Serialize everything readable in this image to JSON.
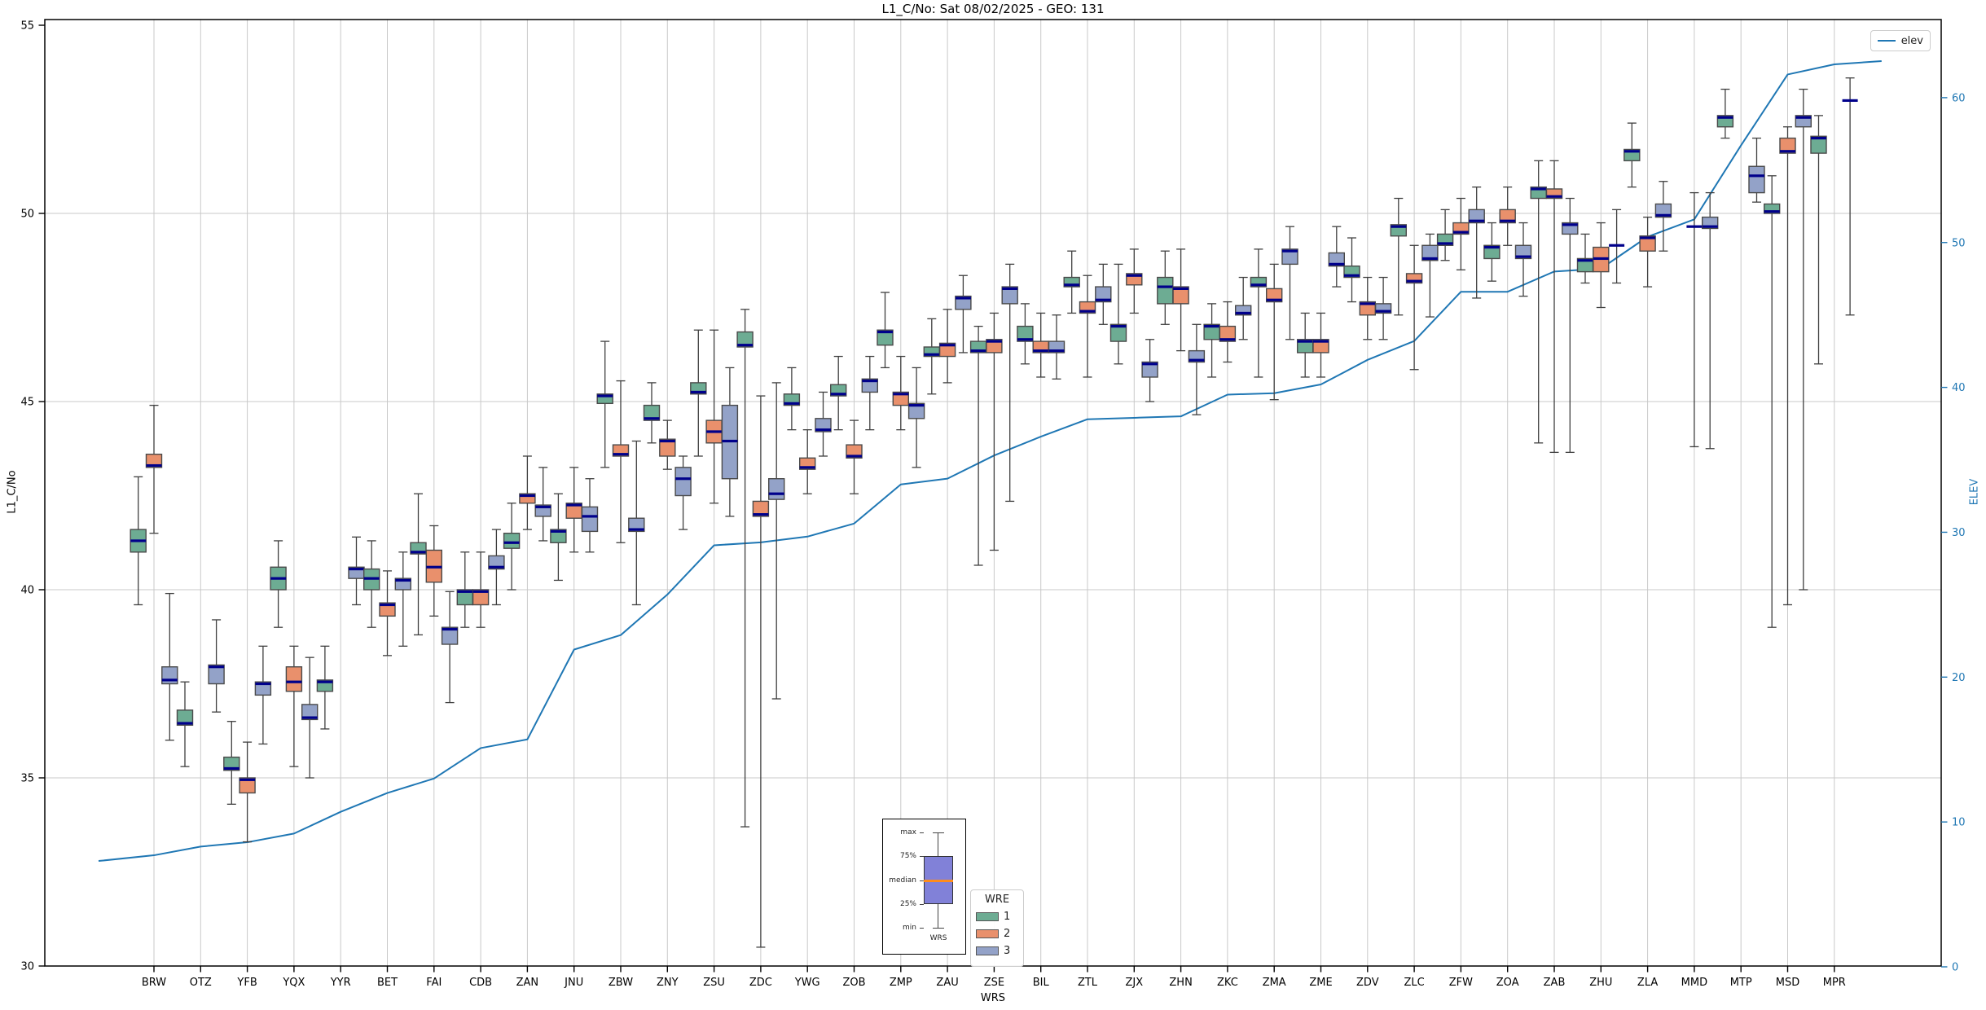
{
  "title": "L1_C/No: Sat 08/02/2025 - GEO: 131",
  "axes": {
    "left": {
      "label": "L1_C/No",
      "ticks": [
        30,
        35,
        40,
        45,
        50,
        55
      ],
      "gridlines": [
        35,
        40,
        45,
        50
      ],
      "range": [
        30,
        55
      ]
    },
    "right": {
      "label": "ELEV",
      "ticks": [
        0,
        10,
        20,
        30,
        40,
        50,
        60
      ],
      "range": [
        0,
        60
      ],
      "color": "#1f77b4"
    },
    "x": {
      "label": "WRS"
    }
  },
  "legend_elev": {
    "label": "elev"
  },
  "legend_wre": {
    "title": "WRE",
    "items": [
      {
        "label": "1",
        "color": "#6dac93"
      },
      {
        "label": "2",
        "color": "#e9906c"
      },
      {
        "label": "3",
        "color": "#93a2c8"
      }
    ]
  },
  "inset": {
    "labels": [
      "max",
      "75%",
      "median",
      "25%",
      "min"
    ],
    "xlabel": "WRS",
    "box_color": "#8181d8",
    "median_color": "#ff8c1a"
  },
  "colors": {
    "series": [
      "#6dac93",
      "#e9906c",
      "#93a2c8"
    ],
    "median": "#00008b",
    "box_stroke": "#4a4a4a",
    "whisker": "#3f3f3f",
    "elev": "#1f77b4",
    "grid": "#c9c9c9"
  },
  "chart_data": {
    "type": "boxplot+line",
    "title": "L1_C/No: Sat 08/02/2025 - GEO: 131",
    "xlabel": "WRS",
    "ylabel_left": "L1_C/No",
    "ylabel_right": "ELEV",
    "ylim_left": [
      30,
      55
    ],
    "ylim_right": [
      0,
      60
    ],
    "grid": true,
    "legend_position": "elev top-right, WRE bottom-center",
    "series_names": [
      "1",
      "2",
      "3"
    ],
    "categories": [
      "BRW",
      "OTZ",
      "YFB",
      "YQX",
      "YYR",
      "BET",
      "FAI",
      "CDB",
      "ZAN",
      "JNU",
      "ZBW",
      "ZNY",
      "ZSU",
      "ZDC",
      "YWG",
      "ZOB",
      "ZMP",
      "ZAU",
      "ZSE",
      "BIL",
      "ZTL",
      "ZJX",
      "ZHN",
      "ZKC",
      "ZMA",
      "ZME",
      "ZDV",
      "ZLC",
      "ZFW",
      "ZOA",
      "ZAB",
      "ZHU",
      "ZLA",
      "MMD",
      "MTP",
      "MSD",
      "MPR"
    ],
    "boxes_format": "[min, q1, median, q3, max] per WRE series (null = not present)",
    "boxes": [
      [
        [
          39.6,
          41.0,
          41.3,
          41.6,
          43.0
        ],
        [
          41.5,
          43.25,
          43.3,
          43.6,
          44.9
        ],
        [
          36.0,
          37.5,
          37.6,
          37.95,
          39.9
        ]
      ],
      [
        [
          35.3,
          36.4,
          36.45,
          36.8,
          37.55
        ],
        null,
        [
          36.75,
          37.5,
          37.95,
          38.0,
          39.2
        ]
      ],
      [
        [
          34.3,
          35.2,
          35.25,
          35.55,
          36.5
        ],
        [
          33.3,
          34.6,
          34.95,
          35.0,
          35.95
        ],
        [
          35.9,
          37.2,
          37.5,
          37.55,
          38.5
        ]
      ],
      [
        [
          39.0,
          40.0,
          40.3,
          40.6,
          41.3
        ],
        [
          35.3,
          37.3,
          37.55,
          37.95,
          38.5
        ],
        [
          35.0,
          36.55,
          36.6,
          36.95,
          38.2
        ]
      ],
      [
        [
          36.3,
          37.3,
          37.55,
          37.6,
          38.5
        ],
        null,
        [
          39.6,
          40.3,
          40.55,
          40.6,
          41.4
        ]
      ],
      [
        [
          39.0,
          40.0,
          40.3,
          40.55,
          41.3
        ],
        [
          38.25,
          39.3,
          39.6,
          39.65,
          40.5
        ],
        [
          38.5,
          40.0,
          40.25,
          40.3,
          41.0
        ]
      ],
      [
        [
          38.8,
          40.95,
          41.0,
          41.25,
          42.55
        ],
        [
          39.3,
          40.2,
          40.6,
          41.05,
          41.7
        ],
        [
          37.0,
          38.55,
          38.95,
          39.0,
          39.95
        ]
      ],
      [
        [
          39.0,
          39.6,
          39.95,
          40.0,
          41.0
        ],
        [
          39.0,
          39.6,
          39.95,
          40.0,
          41.0
        ],
        [
          39.6,
          40.55,
          40.6,
          40.9,
          41.6
        ]
      ],
      [
        [
          40.0,
          41.1,
          41.25,
          41.5,
          42.3
        ],
        [
          41.6,
          42.3,
          42.5,
          42.55,
          43.55
        ],
        [
          41.3,
          41.95,
          42.2,
          42.25,
          43.25
        ]
      ],
      [
        [
          40.25,
          41.25,
          41.55,
          41.6,
          42.55
        ],
        [
          41.0,
          41.9,
          42.25,
          42.3,
          43.25
        ],
        [
          41.0,
          41.55,
          41.95,
          42.2,
          42.95
        ]
      ],
      [
        [
          43.25,
          44.95,
          45.15,
          45.2,
          46.6
        ],
        [
          41.25,
          43.55,
          43.6,
          43.85,
          45.55
        ],
        [
          39.6,
          41.55,
          41.6,
          41.9,
          43.95
        ]
      ],
      [
        [
          43.9,
          44.5,
          44.55,
          44.9,
          45.5
        ],
        [
          43.2,
          43.55,
          43.95,
          44.0,
          44.5
        ],
        [
          41.6,
          42.5,
          42.95,
          43.25,
          43.55
        ]
      ],
      [
        [
          43.55,
          45.2,
          45.25,
          45.5,
          46.9
        ],
        [
          42.3,
          43.9,
          44.2,
          44.5,
          46.9
        ],
        [
          41.95,
          42.95,
          43.95,
          44.9,
          45.9
        ]
      ],
      [
        [
          33.7,
          46.45,
          46.5,
          46.85,
          47.45
        ],
        [
          30.5,
          41.95,
          42.0,
          42.35,
          45.15
        ],
        [
          37.1,
          42.4,
          42.55,
          42.95,
          45.5
        ]
      ],
      [
        [
          44.25,
          44.9,
          44.95,
          45.2,
          45.9
        ],
        [
          42.55,
          43.2,
          43.25,
          43.5,
          44.25
        ],
        [
          43.55,
          44.2,
          44.25,
          44.55,
          45.25
        ]
      ],
      [
        [
          44.25,
          45.15,
          45.2,
          45.45,
          46.2
        ],
        [
          42.55,
          43.5,
          43.55,
          43.85,
          44.5
        ],
        [
          44.25,
          45.25,
          45.55,
          45.6,
          46.2
        ]
      ],
      [
        [
          45.9,
          46.5,
          46.85,
          46.9,
          47.9
        ],
        [
          44.25,
          44.9,
          45.2,
          45.25,
          46.2
        ],
        [
          43.25,
          44.55,
          44.9,
          44.95,
          45.9
        ]
      ],
      [
        [
          45.2,
          46.2,
          46.25,
          46.45,
          47.2
        ],
        [
          45.5,
          46.2,
          46.5,
          46.55,
          47.45
        ],
        [
          46.3,
          47.45,
          47.75,
          47.8,
          48.35
        ]
      ],
      [
        [
          40.65,
          46.3,
          46.35,
          46.6,
          47.0
        ],
        [
          41.05,
          46.3,
          46.6,
          46.65,
          47.35
        ],
        [
          42.35,
          47.6,
          48.0,
          48.05,
          48.65
        ]
      ],
      [
        [
          46.0,
          46.6,
          46.65,
          47.0,
          47.6
        ],
        [
          45.65,
          46.3,
          46.35,
          46.6,
          47.35
        ],
        [
          45.6,
          46.3,
          46.35,
          46.6,
          47.3
        ]
      ],
      [
        [
          47.35,
          48.05,
          48.1,
          48.3,
          49.0
        ],
        [
          45.65,
          47.35,
          47.4,
          47.65,
          48.35
        ],
        [
          47.05,
          47.65,
          47.7,
          48.05,
          48.65
        ]
      ],
      [
        [
          46.0,
          46.6,
          47.0,
          47.05,
          48.65
        ],
        [
          47.35,
          48.1,
          48.35,
          48.4,
          49.05
        ],
        [
          45.0,
          45.65,
          46.0,
          46.05,
          46.65
        ]
      ],
      [
        [
          47.05,
          47.6,
          48.05,
          48.3,
          49.0
        ],
        [
          46.35,
          47.6,
          48.0,
          48.05,
          49.05
        ],
        [
          44.65,
          46.05,
          46.1,
          46.35,
          47.05
        ]
      ],
      [
        [
          45.65,
          46.65,
          47.0,
          47.05,
          47.6
        ],
        [
          46.05,
          46.6,
          46.65,
          47.0,
          47.65
        ],
        [
          46.65,
          47.3,
          47.35,
          47.55,
          48.3
        ]
      ],
      [
        [
          45.65,
          48.05,
          48.1,
          48.3,
          49.05
        ],
        [
          45.05,
          47.65,
          47.7,
          48.0,
          48.65
        ],
        [
          46.65,
          48.65,
          49.0,
          49.05,
          49.65
        ]
      ],
      [
        [
          45.65,
          46.3,
          46.6,
          46.65,
          47.35
        ],
        [
          45.65,
          46.3,
          46.6,
          46.65,
          47.35
        ],
        [
          48.05,
          48.6,
          48.65,
          48.95,
          49.65
        ]
      ],
      [
        [
          47.65,
          48.3,
          48.35,
          48.6,
          49.35
        ],
        [
          46.65,
          47.3,
          47.6,
          47.65,
          48.3
        ],
        [
          46.65,
          47.35,
          47.4,
          47.6,
          48.3
        ]
      ],
      [
        [
          47.3,
          49.4,
          49.65,
          49.7,
          50.4
        ],
        [
          45.85,
          48.15,
          48.2,
          48.4,
          49.15
        ],
        [
          47.25,
          48.75,
          48.8,
          49.15,
          49.45
        ]
      ],
      [
        [
          48.75,
          49.15,
          49.2,
          49.45,
          50.1
        ],
        [
          48.5,
          49.45,
          49.5,
          49.75,
          50.4
        ],
        [
          47.75,
          49.75,
          49.8,
          50.1,
          50.7
        ]
      ],
      [
        [
          48.2,
          48.8,
          49.1,
          49.15,
          49.75
        ],
        [
          49.15,
          49.75,
          49.8,
          50.1,
          50.7
        ],
        [
          47.8,
          48.8,
          48.85,
          49.15,
          49.75
        ]
      ],
      [
        [
          43.9,
          50.4,
          50.65,
          50.7,
          51.4
        ],
        [
          43.65,
          50.4,
          50.45,
          50.65,
          51.4
        ],
        [
          43.65,
          49.45,
          49.7,
          49.75,
          50.4
        ]
      ],
      [
        [
          48.15,
          48.45,
          48.75,
          48.8,
          49.45
        ],
        [
          47.5,
          48.45,
          48.8,
          49.1,
          49.75
        ],
        [
          48.15,
          49.15,
          49.15,
          49.15,
          50.1
        ]
      ],
      [
        [
          50.7,
          51.4,
          51.65,
          51.7,
          52.4
        ],
        [
          48.05,
          49.0,
          49.35,
          49.4,
          49.9
        ],
        [
          49.0,
          49.9,
          49.95,
          50.25,
          50.85
        ]
      ],
      [
        null,
        [
          43.8,
          49.65,
          49.65,
          49.65,
          50.55
        ],
        [
          43.75,
          49.6,
          49.65,
          49.9,
          50.55
        ]
      ],
      [
        [
          52.0,
          52.3,
          52.55,
          52.6,
          53.3
        ],
        null,
        [
          50.3,
          50.55,
          51.0,
          51.25,
          52.0
        ]
      ],
      [
        [
          39.0,
          50.0,
          50.05,
          50.25,
          51.0
        ],
        [
          39.6,
          51.6,
          51.65,
          52.0,
          52.3
        ],
        [
          40.0,
          52.3,
          52.55,
          52.6,
          53.3
        ]
      ],
      [
        [
          46.0,
          51.6,
          52.0,
          52.05,
          52.6
        ],
        null,
        [
          47.3,
          53.0,
          53.0,
          53.0,
          53.6
        ]
      ]
    ],
    "elev_series": {
      "name": "elev",
      "values": [
        7.7,
        8.3,
        8.6,
        9.2,
        10.7,
        12.0,
        13.0,
        15.1,
        15.7,
        21.9,
        22.9,
        25.7,
        29.1,
        29.3,
        29.7,
        30.6,
        33.3,
        33.7,
        35.3,
        36.6,
        37.8,
        37.9,
        38.0,
        39.5,
        39.6,
        40.2,
        41.9,
        43.2,
        46.6,
        46.6,
        48.0,
        48.2,
        50.4,
        51.6,
        56.7,
        61.6,
        62.3
      ]
    }
  }
}
